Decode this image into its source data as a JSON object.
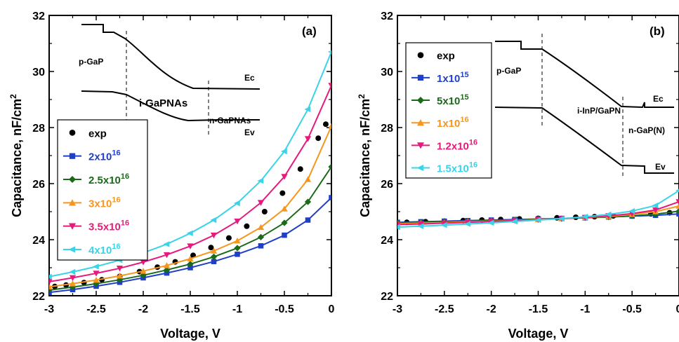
{
  "chart_data": [
    {
      "type": "line",
      "panel_label": "(a)",
      "xlabel": "Voltage, V",
      "ylabel_main": "Capacitance, nF/cm",
      "ylabel_sup": "2",
      "xlim": [
        -3,
        0
      ],
      "ylim": [
        22,
        32
      ],
      "xticks": [
        "-3",
        "-2.5",
        "-2",
        "-1.5",
        "-1",
        "-0.5",
        "0"
      ],
      "xtick_values": [
        -3,
        -2.5,
        -2,
        -1.5,
        -1,
        -0.5,
        0
      ],
      "yticks": [
        "22",
        "24",
        "26",
        "28",
        "30",
        "32"
      ],
      "ytick_values": [
        22,
        24,
        26,
        28,
        30,
        32
      ],
      "grid": false,
      "legend_position": "middle-left",
      "series": [
        {
          "name": "exp",
          "mantissa": "",
          "exponent": "",
          "color": "#000000",
          "marker": "circle",
          "line": false,
          "x": [
            -2.94,
            -2.82,
            -2.63,
            -2.44,
            -2.25,
            -2.04,
            -1.85,
            -1.66,
            -1.47,
            -1.28,
            -1.09,
            -0.9,
            -0.71,
            -0.52,
            -0.33,
            -0.14,
            -0.06
          ],
          "y": [
            22.33,
            22.38,
            22.47,
            22.57,
            22.69,
            22.86,
            23.02,
            23.21,
            23.44,
            23.72,
            24.06,
            24.48,
            25.0,
            25.66,
            26.52,
            27.62,
            28.12
          ]
        },
        {
          "name": "2x10",
          "mantissa": "2x10",
          "exponent": "16",
          "color": "#1f3fc8",
          "marker": "square",
          "line": true,
          "x": [
            -3.0,
            -2.75,
            -2.5,
            -2.25,
            -2.0,
            -1.75,
            -1.5,
            -1.25,
            -1.0,
            -0.75,
            -0.5,
            -0.25,
            0.0
          ],
          "y": [
            22.12,
            22.22,
            22.34,
            22.48,
            22.64,
            22.81,
            23.0,
            23.22,
            23.48,
            23.78,
            24.16,
            24.7,
            25.5
          ]
        },
        {
          "name": "2.5x10",
          "mantissa": "2.5x10",
          "exponent": "16",
          "color": "#1a6a1a",
          "marker": "diamond",
          "line": true,
          "x": [
            -3.0,
            -2.75,
            -2.5,
            -2.25,
            -2.0,
            -1.75,
            -1.5,
            -1.25,
            -1.0,
            -0.75,
            -0.5,
            -0.25,
            0.0
          ],
          "y": [
            22.2,
            22.31,
            22.43,
            22.57,
            22.73,
            22.92,
            23.13,
            23.39,
            23.7,
            24.09,
            24.6,
            25.35,
            26.6
          ]
        },
        {
          "name": "3x10",
          "mantissa": "3x10",
          "exponent": "16",
          "color": "#f5961e",
          "marker": "triangle-up",
          "line": true,
          "x": [
            -3.0,
            -2.75,
            -2.5,
            -2.25,
            -2.0,
            -1.75,
            -1.5,
            -1.25,
            -1.0,
            -0.75,
            -0.5,
            -0.25,
            0.0
          ],
          "y": [
            22.32,
            22.43,
            22.56,
            22.71,
            22.88,
            23.08,
            23.32,
            23.6,
            23.96,
            24.44,
            25.1,
            26.15,
            28.05
          ]
        },
        {
          "name": "3.5x10",
          "mantissa": "3.5x10",
          "exponent": "16",
          "color": "#e6197d",
          "marker": "triangle-down",
          "line": true,
          "x": [
            -3.0,
            -2.75,
            -2.5,
            -2.25,
            -2.0,
            -1.75,
            -1.5,
            -1.25,
            -1.0,
            -0.75,
            -0.5,
            -0.25,
            0.0
          ],
          "y": [
            22.5,
            22.64,
            22.8,
            22.98,
            23.2,
            23.46,
            23.77,
            24.16,
            24.66,
            25.32,
            26.25,
            27.6,
            29.5
          ]
        },
        {
          "name": "4x10",
          "mantissa": "4x10",
          "exponent": "16",
          "color": "#3ad3e8",
          "marker": "triangle-left",
          "line": true,
          "x": [
            -3.0,
            -2.75,
            -2.5,
            -2.25,
            -2.0,
            -1.75,
            -1.5,
            -1.25,
            -1.0,
            -0.75,
            -0.5,
            -0.25,
            0.0
          ],
          "y": [
            22.68,
            22.85,
            23.04,
            23.27,
            23.53,
            23.84,
            24.23,
            24.7,
            25.3,
            26.1,
            27.15,
            28.65,
            30.7
          ]
        }
      ],
      "inset": {
        "labels": {
          "p": "p-GaP",
          "i": "i-GaPNAs",
          "n": "n-GaPNAs",
          "ec": "Ec",
          "ev": "Ev"
        }
      }
    },
    {
      "type": "line",
      "panel_label": "(b)",
      "xlabel": "Voltage, V",
      "ylabel_main": "Capacitance, nF/cm",
      "ylabel_sup": "2",
      "xlim": [
        -3,
        0
      ],
      "ylim": [
        22,
        32
      ],
      "xticks": [
        "-3",
        "-2.5",
        "-2",
        "-1.5",
        "-1",
        "-0.5",
        "0"
      ],
      "xtick_values": [
        -3,
        -2.5,
        -2,
        -1.5,
        -1,
        -0.5,
        0
      ],
      "yticks": [
        "22",
        "24",
        "26",
        "28",
        "30",
        "32"
      ],
      "ytick_values": [
        22,
        24,
        26,
        28,
        30,
        32
      ],
      "grid": false,
      "legend_position": "upper-left",
      "series": [
        {
          "name": "exp",
          "mantissa": "",
          "exponent": "",
          "color": "#000000",
          "marker": "circle",
          "line": false,
          "x": [
            -2.9,
            -2.7,
            -2.5,
            -2.3,
            -2.1,
            -1.9,
            -1.7,
            -1.5,
            -1.3,
            -1.1,
            -0.9,
            -0.7,
            -0.5,
            -0.3,
            -0.1
          ],
          "y": [
            24.62,
            24.64,
            24.66,
            24.68,
            24.7,
            24.72,
            24.74,
            24.76,
            24.78,
            24.8,
            24.82,
            24.85,
            24.88,
            24.92,
            24.96
          ]
        },
        {
          "name": "1x10",
          "mantissa": "1x10",
          "exponent": "15",
          "color": "#1f3fc8",
          "marker": "square",
          "line": true,
          "x": [
            -3.0,
            -2.75,
            -2.5,
            -2.25,
            -2.0,
            -1.75,
            -1.5,
            -1.25,
            -1.0,
            -0.75,
            -0.5,
            -0.25,
            0.0
          ],
          "y": [
            24.62,
            24.64,
            24.66,
            24.68,
            24.7,
            24.72,
            24.74,
            24.76,
            24.78,
            24.81,
            24.84,
            24.87,
            24.92
          ]
        },
        {
          "name": "5x10",
          "mantissa": "5x10",
          "exponent": "15",
          "color": "#1a6a1a",
          "marker": "diamond",
          "line": true,
          "x": [
            -3.0,
            -2.75,
            -2.5,
            -2.25,
            -2.0,
            -1.75,
            -1.5,
            -1.25,
            -1.0,
            -0.75,
            -0.5,
            -0.25,
            0.0
          ],
          "y": [
            24.6,
            24.62,
            24.64,
            24.66,
            24.68,
            24.7,
            24.73,
            24.75,
            24.78,
            24.81,
            24.85,
            24.91,
            25.02
          ]
        },
        {
          "name": "1x10",
          "mantissa": "1x10",
          "exponent": "16",
          "color": "#f5961e",
          "marker": "triangle-up",
          "line": true,
          "x": [
            -3.0,
            -2.75,
            -2.5,
            -2.25,
            -2.0,
            -1.75,
            -1.5,
            -1.25,
            -1.0,
            -0.75,
            -0.5,
            -0.25,
            0.0
          ],
          "y": [
            24.57,
            24.59,
            24.61,
            24.64,
            24.66,
            24.69,
            24.72,
            24.75,
            24.79,
            24.83,
            24.9,
            25.0,
            25.2
          ]
        },
        {
          "name": "1.2x10",
          "mantissa": "1.2x10",
          "exponent": "16",
          "color": "#e6197d",
          "marker": "triangle-down",
          "line": true,
          "x": [
            -3.0,
            -2.75,
            -2.5,
            -2.25,
            -2.0,
            -1.75,
            -1.5,
            -1.25,
            -1.0,
            -0.75,
            -0.5,
            -0.25,
            0.0
          ],
          "y": [
            24.54,
            24.56,
            24.59,
            24.62,
            24.65,
            24.68,
            24.71,
            24.75,
            24.79,
            24.85,
            24.93,
            25.06,
            25.35
          ]
        },
        {
          "name": "1.5x10",
          "mantissa": "1.5x10",
          "exponent": "16",
          "color": "#3ad3e8",
          "marker": "triangle-left",
          "line": true,
          "x": [
            -3.0,
            -2.75,
            -2.5,
            -2.25,
            -2.0,
            -1.75,
            -1.5,
            -1.25,
            -1.0,
            -0.75,
            -0.5,
            -0.25,
            0.0
          ],
          "y": [
            24.45,
            24.48,
            24.52,
            24.56,
            24.6,
            24.65,
            24.7,
            24.75,
            24.82,
            24.9,
            25.02,
            25.22,
            25.75
          ]
        }
      ],
      "inset": {
        "labels": {
          "p": "p-GaP",
          "i": "i-InP/GaPN",
          "n": "n-GaP(N)",
          "ec": "Ec",
          "ev": "Ev"
        }
      }
    }
  ]
}
